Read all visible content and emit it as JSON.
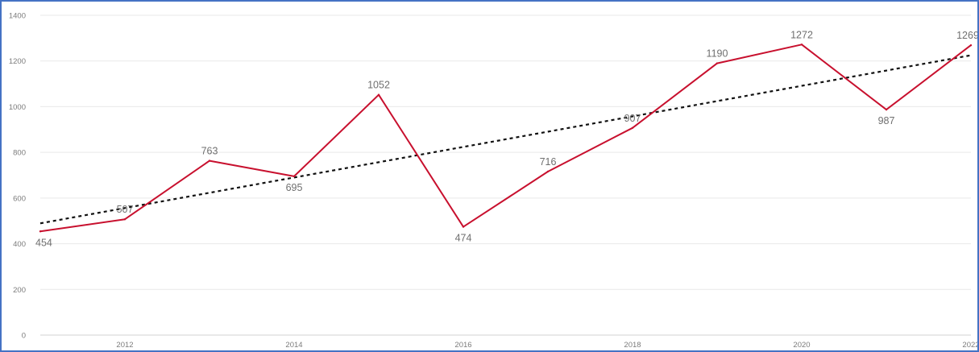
{
  "chart_data": {
    "type": "line",
    "title": "",
    "xlabel": "",
    "ylabel": "",
    "x": [
      2011,
      2012,
      2013,
      2014,
      2015,
      2016,
      2017,
      2018,
      2019,
      2020,
      2021,
      2022
    ],
    "series": [
      {
        "values": [
          454,
          507,
          763,
          695,
          1052,
          474,
          716,
          907,
          1190,
          1272,
          987,
          1269
        ],
        "color": "#c8102e"
      }
    ],
    "trendline": {
      "type": "linear",
      "color": "#111111",
      "style": "dotted"
    },
    "xlim": [
      2011,
      2022
    ],
    "ylim": [
      0,
      1400
    ],
    "yticks": [
      0,
      200,
      400,
      600,
      800,
      1000,
      1200,
      1400
    ],
    "xticks": [
      2012,
      2014,
      2016,
      2018,
      2020,
      2022
    ],
    "data_label_positions": [
      "below",
      "above",
      "above",
      "below",
      "above",
      "below",
      "above",
      "above",
      "above",
      "above",
      "below",
      "above"
    ],
    "grid": true,
    "legend": "none"
  }
}
